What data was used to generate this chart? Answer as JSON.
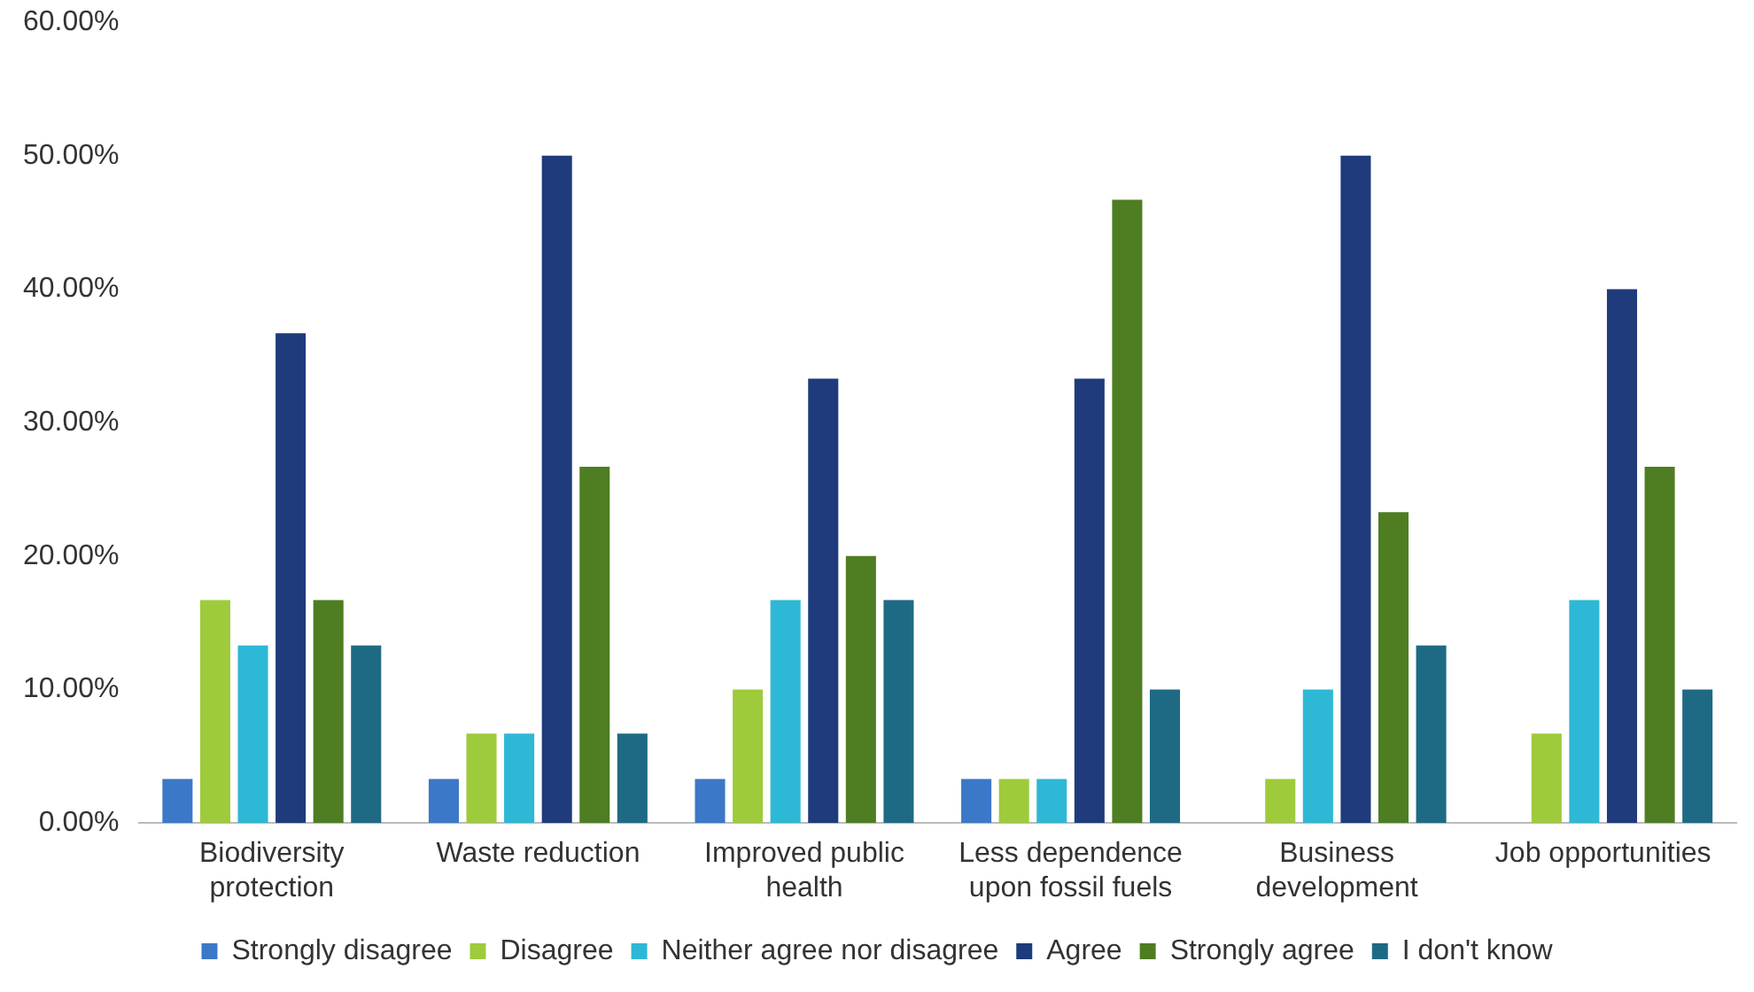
{
  "chart_data": {
    "type": "bar",
    "categories": [
      "Biodiversity protection",
      "Waste reduction",
      "Improved public health",
      "Less dependence upon fossil fuels",
      "Business development",
      "Job opportunities"
    ],
    "series": [
      {
        "name": "Strongly disagree",
        "color": "#3b78c8",
        "values": [
          3.3,
          3.3,
          3.3,
          3.3,
          0,
          0
        ]
      },
      {
        "name": "Disagree",
        "color": "#9dcb3c",
        "values": [
          16.7,
          6.7,
          10,
          3.3,
          3.3,
          6.7
        ]
      },
      {
        "name": "Neither agree nor disagree",
        "color": "#2db8d6",
        "values": [
          13.3,
          6.7,
          16.7,
          3.3,
          10,
          16.7
        ]
      },
      {
        "name": "Agree",
        "color": "#1f3b7c",
        "values": [
          36.7,
          50,
          33.3,
          33.3,
          50,
          40
        ]
      },
      {
        "name": "Strongly agree",
        "color": "#4e7d22",
        "values": [
          16.7,
          26.7,
          20,
          46.7,
          23.3,
          26.7
        ]
      },
      {
        "name": "I don't know",
        "color": "#1e6a84",
        "values": [
          13.3,
          6.7,
          16.7,
          10,
          13.3,
          10
        ]
      }
    ],
    "ylim": [
      0,
      60
    ],
    "yticks": [
      {
        "value": 0,
        "label": "0.00%"
      },
      {
        "value": 10,
        "label": "10.00%"
      },
      {
        "value": 20,
        "label": "20.00%"
      },
      {
        "value": 30,
        "label": "30.00%"
      },
      {
        "value": 40,
        "label": "40.00%"
      },
      {
        "value": 50,
        "label": "50.00%"
      },
      {
        "value": 60,
        "label": "60.00%"
      }
    ],
    "grid": false,
    "legend": "bottom"
  }
}
